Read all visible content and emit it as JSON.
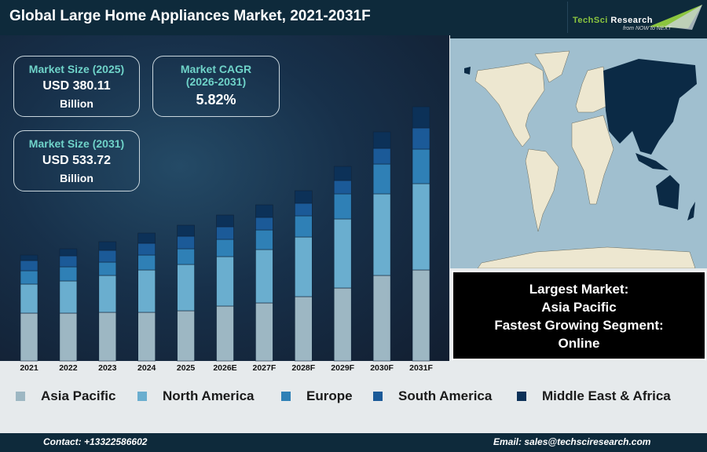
{
  "header": {
    "title": "Global Large Home Appliances Market, 2021-2031F",
    "logo_line1a": "TechSci",
    "logo_line1b": " Research",
    "logo_line2": "from NOW to NEXT"
  },
  "kpis": {
    "size_2025": {
      "label": "Market Size (2025)",
      "value": "USD 380.11",
      "unit": "Billion"
    },
    "cagr": {
      "label": "Market CAGR",
      "period": "(2026-2031)",
      "value": "5.82%"
    },
    "size_2031": {
      "label": "Market Size (2031)",
      "value": "USD 533.72",
      "unit": "Billion"
    }
  },
  "insight": {
    "largest_label": "Largest Market:",
    "largest_value": "Asia Pacific",
    "fastest_label": "Fastest Growing Segment:",
    "fastest_value": "Online"
  },
  "map": {
    "highlighted_region": "Asia Pacific",
    "highlight_color": "#0b2a45",
    "land_color": "#ede7d0",
    "water_color": "#a0bfcf"
  },
  "chart_data": {
    "type": "bar",
    "stacked": true,
    "categories": [
      "2021",
      "2022",
      "2023",
      "2024",
      "2025",
      "2026E",
      "2027F",
      "2028F",
      "2029F",
      "2030F",
      "2031F"
    ],
    "series": [
      {
        "name": "Asia Pacific",
        "color": "#9db7c3",
        "values": [
          61,
          61,
          62,
          62,
          64,
          70,
          74,
          82,
          93,
          109,
          116
        ]
      },
      {
        "name": "North America",
        "color": "#6aaecf",
        "values": [
          37,
          41,
          47,
          54,
          59,
          63,
          68,
          76,
          88,
          104,
          110
        ]
      },
      {
        "name": "Europe",
        "color": "#2f80b6",
        "values": [
          17,
          18,
          17,
          19,
          20,
          22,
          25,
          27,
          32,
          38,
          44
        ]
      },
      {
        "name": "South America",
        "color": "#1b5a98",
        "values": [
          13,
          14,
          15,
          15,
          16,
          16,
          16,
          16,
          17,
          20,
          27
        ]
      },
      {
        "name": "Middle East & Africa",
        "color": "#0c3158",
        "values": [
          7,
          9,
          11,
          13,
          14,
          15,
          16,
          16,
          18,
          21,
          27
        ]
      }
    ],
    "y_axis_shown": false,
    "grid": false,
    "legend_position": "bottom"
  },
  "footer": {
    "contact": "Contact: +13322586602",
    "email": "Email: sales@techsciresearch.com"
  }
}
